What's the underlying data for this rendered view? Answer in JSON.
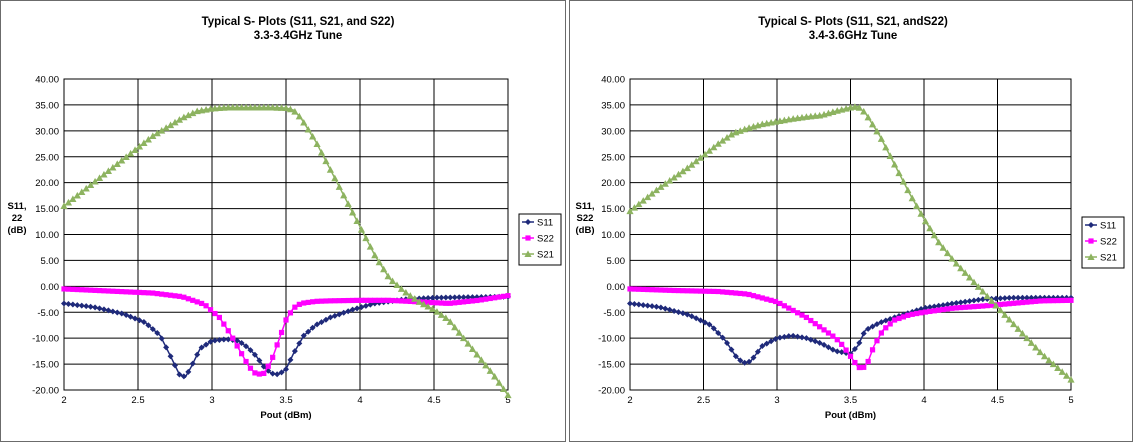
{
  "colors": {
    "S11": "#1f2a7a",
    "S22": "#ff00ff",
    "S21": "#8db360"
  },
  "chart_data": [
    {
      "type": "line",
      "title": "Typical S- Plots (S11, S21, and S22)",
      "subtitle": "3.3-3.4GHz Tune",
      "xlabel": "Pout (dBm)",
      "ylabel": [
        "S11,",
        "22",
        "(dB)"
      ],
      "xlim": [
        2,
        5
      ],
      "ylim": [
        -20,
        40
      ],
      "xticks": [
        "2",
        "2.5",
        "3",
        "3.5",
        "4",
        "4.5",
        "5"
      ],
      "yticks": [
        "40.00",
        "35.00",
        "30.00",
        "25.00",
        "20.00",
        "15.00",
        "10.00",
        "5.00",
        "0.00",
        "-5.00",
        "-10.00",
        "-15.00",
        "-20.00"
      ],
      "grid": true,
      "legend_position": "right",
      "series": [
        {
          "name": "S11",
          "marker": "diamond",
          "x": [
            2.0,
            2.2,
            2.4,
            2.55,
            2.65,
            2.72,
            2.78,
            2.82,
            2.86,
            2.92,
            3.0,
            3.1,
            3.18,
            3.25,
            3.3,
            3.35,
            3.4,
            3.45,
            3.5,
            3.55,
            3.62,
            3.7,
            3.8,
            3.95,
            4.1,
            4.3,
            4.5,
            4.7,
            5.0
          ],
          "y": [
            -3.3,
            -4.0,
            -5.3,
            -7.0,
            -9.5,
            -13.5,
            -17.0,
            -17.5,
            -15.5,
            -12.0,
            -10.5,
            -10.2,
            -10.5,
            -12.0,
            -13.5,
            -15.5,
            -16.8,
            -17.0,
            -16.0,
            -13.0,
            -9.5,
            -7.5,
            -6.0,
            -4.5,
            -3.3,
            -2.5,
            -2.2,
            -2.1,
            -2.0
          ]
        },
        {
          "name": "S22",
          "marker": "square",
          "x": [
            2.0,
            2.3,
            2.6,
            2.8,
            2.95,
            3.05,
            3.12,
            3.2,
            3.25,
            3.3,
            3.35,
            3.4,
            3.45,
            3.5,
            3.55,
            3.6,
            3.7,
            3.8,
            4.0,
            4.2,
            4.4,
            4.6,
            4.8,
            5.0
          ],
          "y": [
            -0.5,
            -0.9,
            -1.3,
            -2.0,
            -3.5,
            -6.0,
            -9.0,
            -13.0,
            -15.5,
            -17.0,
            -16.8,
            -14.5,
            -10.5,
            -6.5,
            -4.2,
            -3.3,
            -2.9,
            -2.8,
            -2.7,
            -2.7,
            -3.0,
            -3.3,
            -2.7,
            -1.8
          ]
        },
        {
          "name": "S21",
          "marker": "triangle",
          "x": [
            2.0,
            2.2,
            2.4,
            2.6,
            2.8,
            2.9,
            3.0,
            3.1,
            3.2,
            3.3,
            3.4,
            3.5,
            3.55,
            3.6,
            3.7,
            3.8,
            3.9,
            4.0,
            4.1,
            4.2,
            4.3,
            4.4,
            4.5,
            4.6,
            4.7,
            4.8,
            4.9,
            5.0
          ],
          "y": [
            15.5,
            20.0,
            24.5,
            29.0,
            32.5,
            33.8,
            34.3,
            34.5,
            34.5,
            34.5,
            34.5,
            34.4,
            34.0,
            32.5,
            28.0,
            22.5,
            17.0,
            11.5,
            6.0,
            1.5,
            -1.0,
            -3.0,
            -4.5,
            -6.5,
            -10.0,
            -13.5,
            -17.0,
            -21.0
          ]
        }
      ]
    },
    {
      "type": "line",
      "title": "Typical S- Plots (S11, S21, andS22)",
      "subtitle": "3.4-3.6GHz Tune",
      "xlabel": "Pout (dBm)",
      "ylabel": [
        "S11,",
        "S22",
        "(dB)"
      ],
      "xlim": [
        2,
        5
      ],
      "ylim": [
        -20,
        40
      ],
      "xticks": [
        "2",
        "2.5",
        "3",
        "3.5",
        "4",
        "4.5",
        "5"
      ],
      "yticks": [
        "40.00",
        "35.00",
        "30.00",
        "25.00",
        "20.00",
        "15.00",
        "10.00",
        "5.00",
        "0.00",
        "-5.00",
        "-10.00",
        "-15.00",
        "-20.00"
      ],
      "grid": true,
      "legend_position": "right",
      "series": [
        {
          "name": "S11",
          "marker": "diamond",
          "x": [
            2.0,
            2.2,
            2.4,
            2.55,
            2.65,
            2.72,
            2.77,
            2.82,
            2.9,
            3.0,
            3.1,
            3.2,
            3.3,
            3.4,
            3.5,
            3.55,
            3.6,
            3.7,
            3.8,
            4.0,
            4.2,
            4.4,
            4.6,
            4.8,
            5.0
          ],
          "y": [
            -3.3,
            -4.0,
            -5.5,
            -7.5,
            -10.5,
            -13.5,
            -14.8,
            -14.5,
            -11.5,
            -10.0,
            -9.5,
            -10.0,
            -11.0,
            -12.5,
            -13.0,
            -11.5,
            -8.5,
            -7.0,
            -6.0,
            -4.2,
            -3.3,
            -2.5,
            -2.2,
            -2.2,
            -2.2
          ]
        },
        {
          "name": "S22",
          "marker": "square",
          "x": [
            2.0,
            2.3,
            2.6,
            2.8,
            3.0,
            3.1,
            3.2,
            3.3,
            3.4,
            3.45,
            3.5,
            3.55,
            3.58,
            3.62,
            3.66,
            3.72,
            3.8,
            3.9,
            4.0,
            4.2,
            4.4,
            4.6,
            4.8,
            5.0
          ],
          "y": [
            -0.5,
            -0.8,
            -1.0,
            -1.5,
            -3.0,
            -4.5,
            -6.0,
            -8.0,
            -10.0,
            -11.5,
            -13.5,
            -15.5,
            -16.0,
            -14.5,
            -11.5,
            -8.5,
            -6.5,
            -5.5,
            -5.0,
            -4.2,
            -3.8,
            -3.3,
            -2.8,
            -2.7
          ]
        },
        {
          "name": "S21",
          "marker": "triangle",
          "x": [
            2.0,
            2.2,
            2.4,
            2.6,
            2.7,
            2.8,
            2.9,
            3.0,
            3.1,
            3.2,
            3.3,
            3.4,
            3.5,
            3.55,
            3.6,
            3.7,
            3.8,
            3.9,
            4.0,
            4.1,
            4.2,
            4.3,
            4.4,
            4.5,
            4.6,
            4.7,
            4.8,
            4.9,
            5.0
          ],
          "y": [
            14.5,
            19.0,
            23.0,
            27.5,
            29.5,
            30.5,
            31.3,
            31.8,
            32.3,
            32.7,
            33.0,
            33.8,
            34.5,
            34.7,
            33.5,
            29.0,
            23.5,
            18.0,
            13.0,
            8.5,
            5.0,
            2.0,
            -1.0,
            -4.0,
            -7.0,
            -10.0,
            -13.0,
            -15.5,
            -18.0
          ]
        }
      ]
    }
  ]
}
